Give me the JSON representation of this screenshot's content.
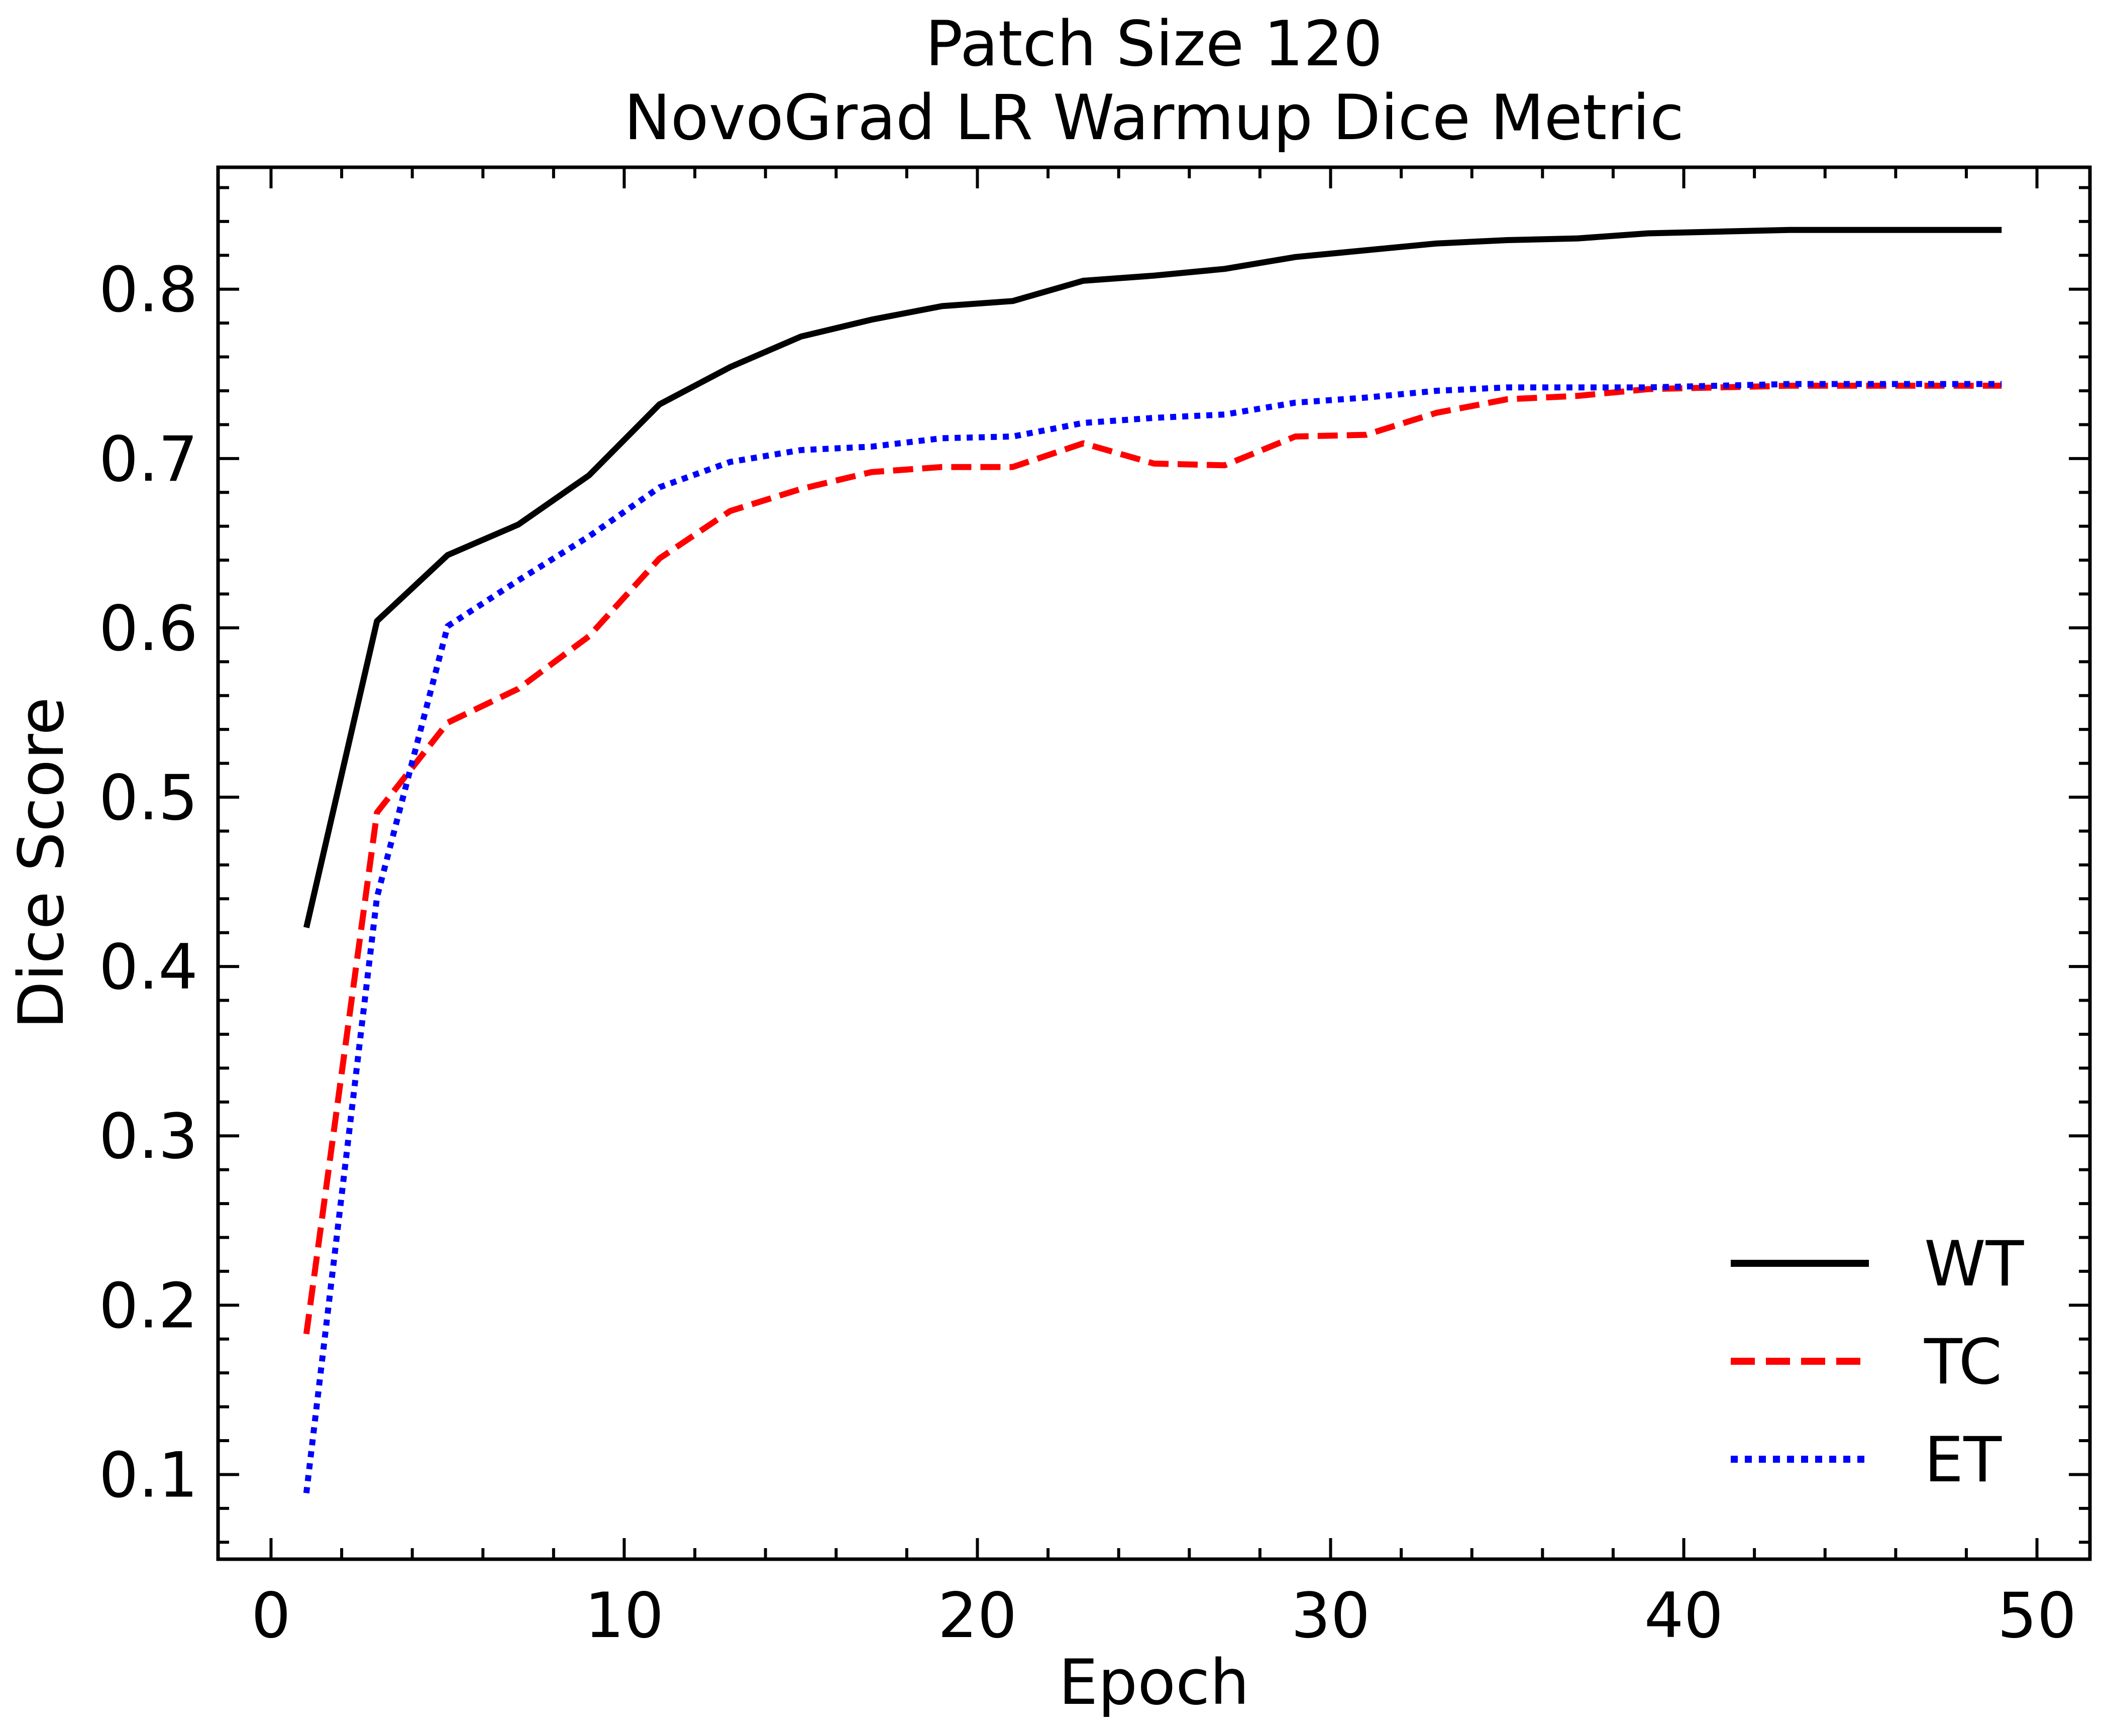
{
  "chart_data": {
    "type": "line",
    "title": "Patch Size 120",
    "subtitle": "NovoGrad LR Warmup Dice Metric",
    "xlabel": "Epoch",
    "ylabel": "Dice Score",
    "xlim": [
      -1.5,
      51.5
    ],
    "ylim": [
      0.05,
      0.872
    ],
    "xticks": [
      0,
      10,
      20,
      30,
      40,
      50
    ],
    "xtick_labels": [
      "0",
      "10",
      "20",
      "30",
      "40",
      "50"
    ],
    "yticks": [
      0.1,
      0.2,
      0.3,
      0.4,
      0.5,
      0.6,
      0.7,
      0.8
    ],
    "ytick_labels": [
      "0.1",
      "0.2",
      "0.3",
      "0.4",
      "0.5",
      "0.6",
      "0.7",
      "0.8"
    ],
    "grid": false,
    "legend_position": "bottom-right",
    "x": [
      1,
      3,
      5,
      7,
      9,
      11,
      13,
      15,
      17,
      19,
      21,
      23,
      25,
      27,
      29,
      31,
      33,
      35,
      37,
      39,
      41,
      43,
      45,
      47,
      49
    ],
    "series": [
      {
        "name": "WT",
        "color": "#000000",
        "style": "solid",
        "values": [
          0.423,
          0.604,
          0.643,
          0.661,
          0.69,
          0.732,
          0.754,
          0.772,
          0.782,
          0.79,
          0.793,
          0.805,
          0.808,
          0.812,
          0.819,
          0.823,
          0.827,
          0.829,
          0.83,
          0.833,
          0.834,
          0.835,
          0.835,
          0.835,
          0.835
        ]
      },
      {
        "name": "TC",
        "color": "#ff0000",
        "style": "dashed",
        "values": [
          0.183,
          0.491,
          0.544,
          0.564,
          0.595,
          0.641,
          0.669,
          0.682,
          0.692,
          0.695,
          0.695,
          0.709,
          0.697,
          0.696,
          0.713,
          0.714,
          0.727,
          0.735,
          0.737,
          0.741,
          0.742,
          0.743,
          0.743,
          0.743,
          0.743
        ]
      },
      {
        "name": "ET",
        "color": "#0000ff",
        "style": "dotted",
        "values": [
          0.089,
          0.441,
          0.601,
          0.628,
          0.654,
          0.683,
          0.698,
          0.705,
          0.707,
          0.712,
          0.713,
          0.721,
          0.724,
          0.726,
          0.733,
          0.736,
          0.74,
          0.742,
          0.742,
          0.742,
          0.743,
          0.744,
          0.744,
          0.744,
          0.744
        ]
      }
    ]
  }
}
